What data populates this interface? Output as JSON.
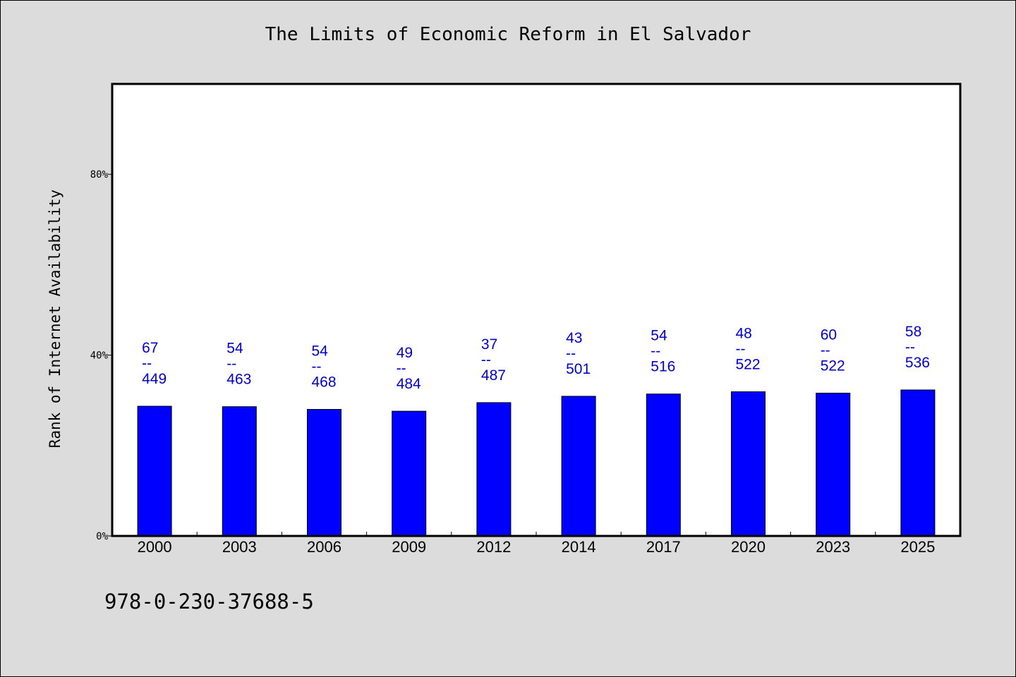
{
  "chart_data": {
    "type": "bar",
    "title": "The Limits of Economic Reform in El Salvador",
    "ylabel": "Rank of Internet Availability",
    "xlabel": "",
    "ylim": [
      0,
      100
    ],
    "yticks": [
      {
        "value": 0,
        "label": "0%"
      },
      {
        "value": 40,
        "label": "40%"
      },
      {
        "value": 80,
        "label": "80%"
      }
    ],
    "grid": false,
    "color": "#0000ff",
    "label_color": "#0000cc",
    "categories": [
      "2000",
      "2003",
      "2006",
      "2009",
      "2012",
      "2014",
      "2017",
      "2020",
      "2023",
      "2025"
    ],
    "values": [
      28.7,
      28.6,
      28.0,
      27.6,
      29.5,
      30.9,
      31.4,
      31.9,
      31.6,
      32.3
    ],
    "label_top": [
      "67",
      "54",
      "54",
      "49",
      "37",
      "43",
      "54",
      "48",
      "60",
      "58"
    ],
    "label_separator": "--",
    "label_bottom": [
      "449",
      "463",
      "468",
      "484",
      "487",
      "501",
      "516",
      "522",
      "522",
      "536"
    ]
  },
  "footer": {
    "isbn": "978-0-230-37688-5"
  }
}
